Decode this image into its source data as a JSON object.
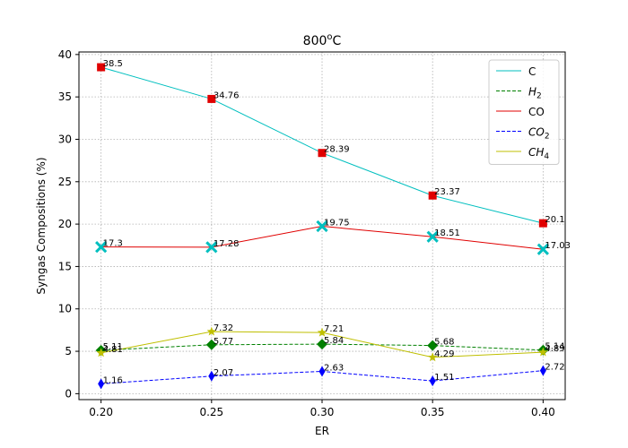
{
  "chart_data": {
    "type": "line",
    "title": "800",
    "title_superscript": "o",
    "title_suffix": "C",
    "xlabel": "ER",
    "ylabel": "Syngas Compositions (%)",
    "xlim": [
      0.19,
      0.41
    ],
    "ylim": [
      -0.7,
      40.3
    ],
    "x_ticks": [
      "0.20",
      "0.25",
      "0.30",
      "0.35",
      "0.40"
    ],
    "y_ticks": [
      "0",
      "5",
      "10",
      "15",
      "20",
      "25",
      "30",
      "35",
      "40"
    ],
    "grid": true,
    "legend_position": "top-right",
    "x": [
      0.2,
      0.25,
      0.3,
      0.35,
      0.4
    ],
    "series": [
      {
        "name": "C",
        "values": [
          38.5,
          34.76,
          28.39,
          23.37,
          20.1
        ],
        "labels": [
          "38.5",
          "34.76",
          "28.39",
          "23.37",
          "20.1"
        ],
        "color": "#00bfbf",
        "dash": "solid",
        "marker": "square",
        "marker_color": "#e00000"
      },
      {
        "name": "H",
        "name_sub": "2",
        "values": [
          5.11,
          5.77,
          5.84,
          5.68,
          5.14
        ],
        "labels": [
          "5.11",
          "5.77",
          "5.84",
          "5.68",
          "5.14"
        ],
        "color": "#008000",
        "dash": "dashed",
        "marker": "diamond",
        "marker_color": "#008000"
      },
      {
        "name": "CO",
        "values": [
          17.3,
          17.28,
          19.75,
          18.51,
          17.03
        ],
        "labels": [
          "17.3",
          "17.28",
          "19.75",
          "18.51",
          "17.03"
        ],
        "color": "#e00000",
        "dash": "solid",
        "marker": "x",
        "marker_color": "#00bfbf"
      },
      {
        "name": "CO",
        "name_sub": "2",
        "values": [
          1.16,
          2.07,
          2.63,
          1.51,
          2.72
        ],
        "labels": [
          "1.16",
          "2.07",
          "2.63",
          "1.51",
          "2.72"
        ],
        "color": "#0000ff",
        "dash": "dashed",
        "marker": "thin-diamond",
        "marker_color": "#0000ff"
      },
      {
        "name": "CH",
        "name_sub": "4",
        "values": [
          4.81,
          7.32,
          7.21,
          4.29,
          4.89
        ],
        "labels": [
          "4.81",
          "7.32",
          "7.21",
          "4.29",
          "4.89"
        ],
        "color": "#bfbf00",
        "dash": "solid",
        "marker": "star",
        "marker_color": "#bfbf00"
      }
    ]
  }
}
